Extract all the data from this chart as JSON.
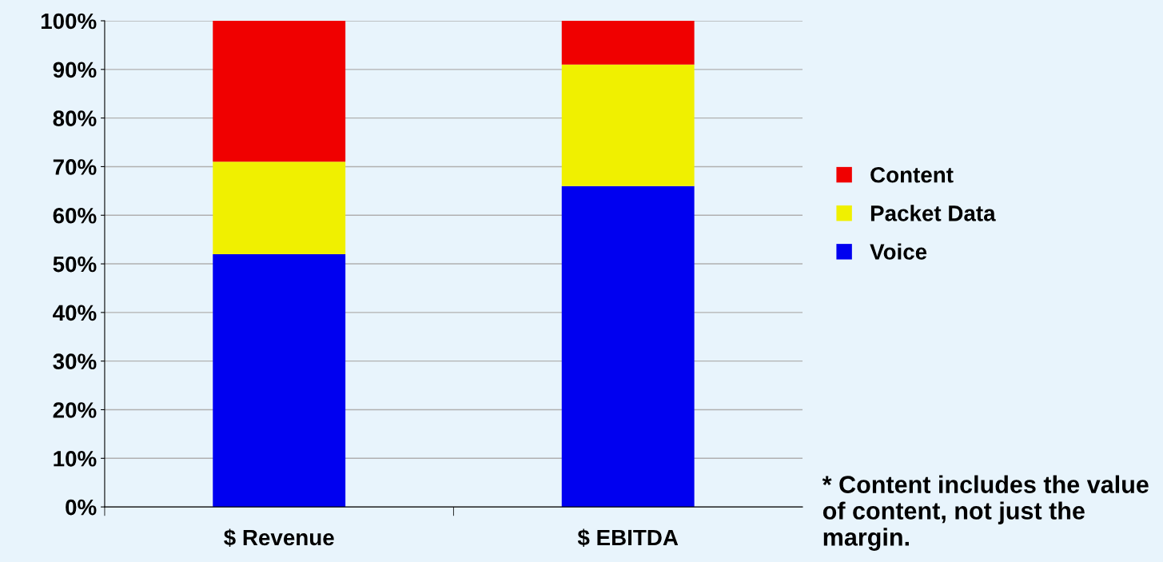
{
  "chart_data": {
    "type": "bar",
    "stacked": true,
    "categories": [
      "$ Revenue",
      "$ EBITDA"
    ],
    "series": [
      {
        "name": "Voice",
        "color": "#0000f0",
        "values": [
          52,
          66
        ]
      },
      {
        "name": "Packet Data",
        "color": "#f0f000",
        "values": [
          19,
          25
        ]
      },
      {
        "name": "Content",
        "color": "#f00000",
        "values": [
          29,
          9
        ]
      }
    ],
    "ylim": [
      0,
      100
    ],
    "yticks": [
      {
        "value": 0,
        "label": "0%"
      },
      {
        "value": 10,
        "label": "10%"
      },
      {
        "value": 20,
        "label": "20%"
      },
      {
        "value": 30,
        "label": "30%"
      },
      {
        "value": 40,
        "label": "40%"
      },
      {
        "value": 50,
        "label": "50%"
      },
      {
        "value": 60,
        "label": "60%"
      },
      {
        "value": 70,
        "label": "70%"
      },
      {
        "value": 80,
        "label": "80%"
      },
      {
        "value": 90,
        "label": "90%"
      },
      {
        "value": 100,
        "label": "100%"
      }
    ],
    "grid": "y",
    "legend": "right",
    "annotations": [
      "* Content includes the value of content, not just the margin."
    ]
  }
}
